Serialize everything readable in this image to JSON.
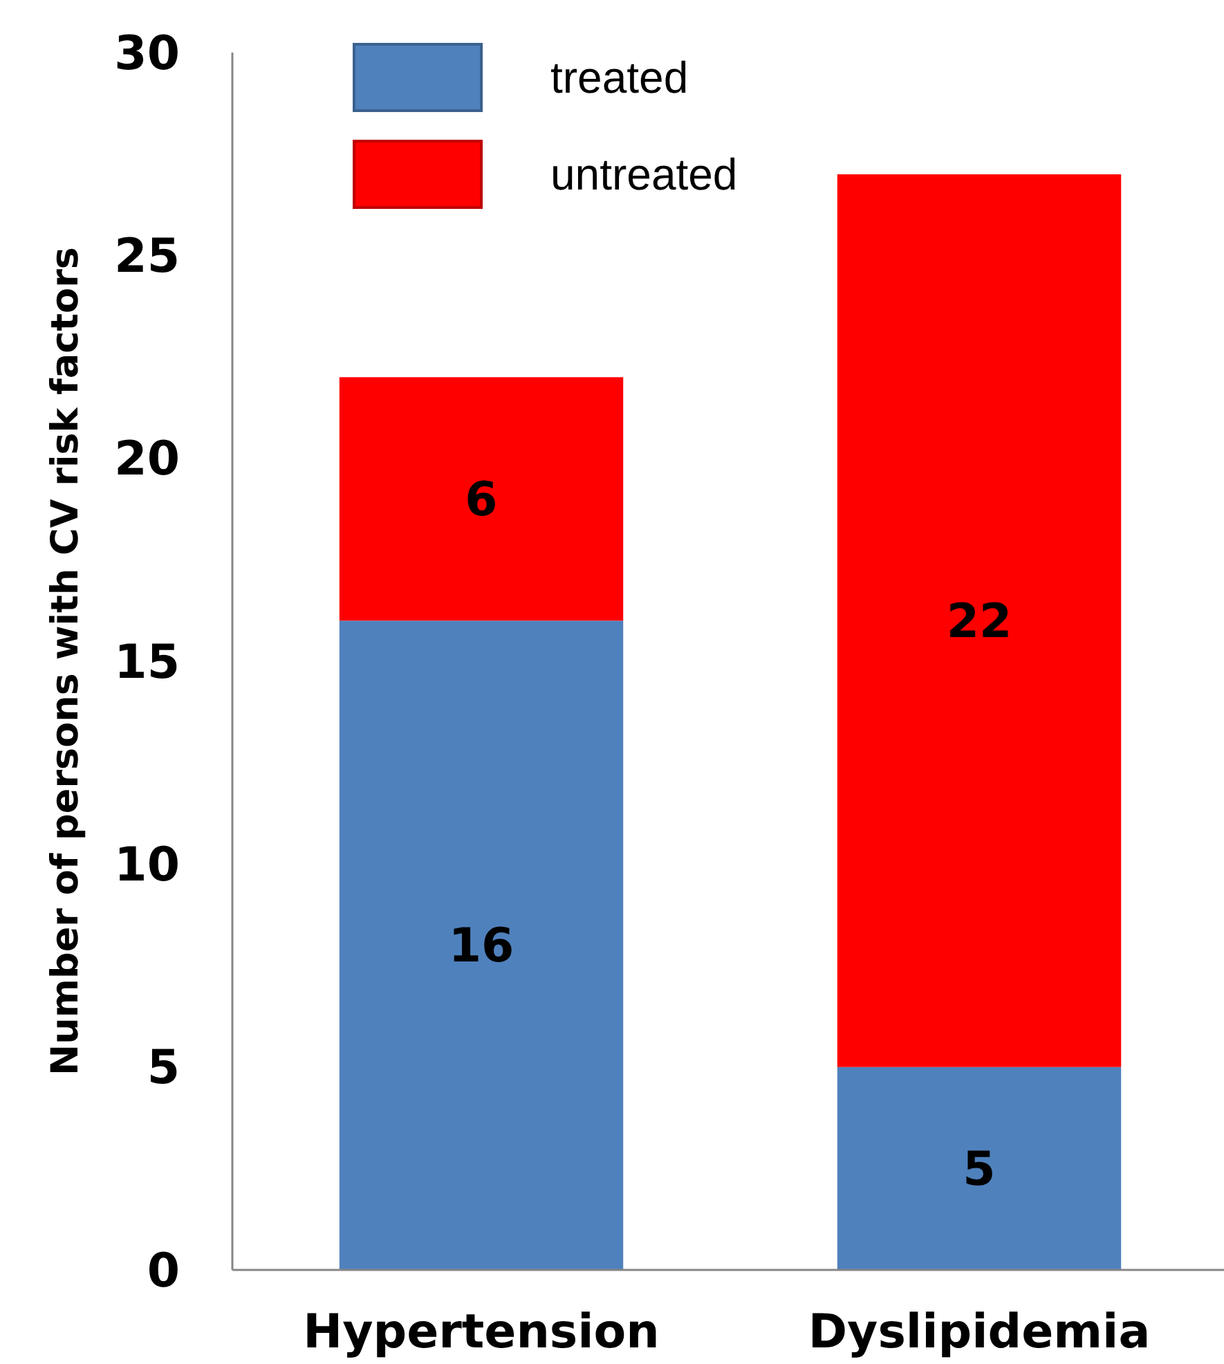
{
  "chart_data": {
    "type": "bar",
    "ylabel": "Number of persons with CV risk factors",
    "categories": [
      "Hypertension",
      "Dyslipidemia"
    ],
    "series": [
      {
        "name": "treated",
        "color": "#4f81bd",
        "values": [
          16,
          5
        ]
      },
      {
        "name": "untreated",
        "color": "#ff0000",
        "values": [
          6,
          22
        ]
      }
    ],
    "stacked": true,
    "ylim": [
      0,
      30
    ],
    "yticks": [
      0,
      5,
      10,
      15,
      20,
      25,
      30
    ],
    "grid": false,
    "legend": "top left",
    "data_labels": true
  }
}
